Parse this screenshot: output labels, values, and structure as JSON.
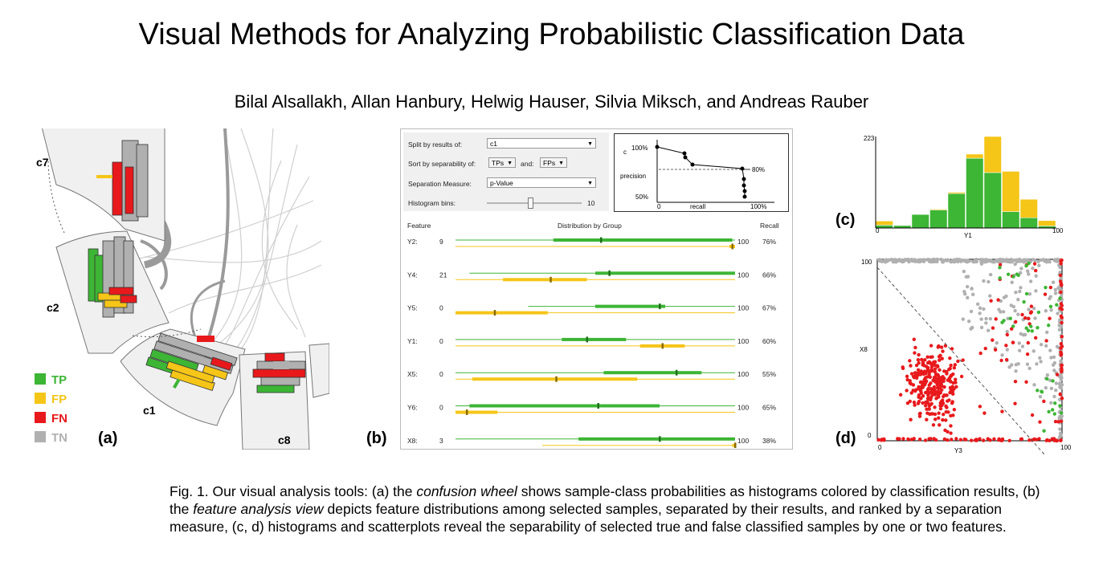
{
  "title": "Visual Methods for Analyzing Probabilistic Classification Data",
  "authors": "Bilal Alsallakh, Allan Hanbury, Helwig Hauser, Silvia Miksch, and Andreas Rauber",
  "colors": {
    "tp": "#3db535",
    "fp": "#f5c518",
    "fn": "#e8191c",
    "tn": "#b0b0b0"
  },
  "panel_a": {
    "letter": "(a)",
    "class_labels": [
      "c7",
      "c2",
      "c1",
      "c8"
    ],
    "legend": [
      {
        "label": "TP",
        "color": "#3db535"
      },
      {
        "label": "FP",
        "color": "#f5c518"
      },
      {
        "label": "FN",
        "color": "#e8191c"
      },
      {
        "label": "TN",
        "color": "#b0b0b0"
      }
    ]
  },
  "panel_b": {
    "letter": "(b)",
    "controls": {
      "split_label": "Split by results of:",
      "split_value": "c1",
      "sort_label": "Sort by separability of:",
      "sort_value1": "TPs",
      "and_label": "and:",
      "sort_value2": "FPs",
      "measure_label": "Separation Measure:",
      "measure_value": "p-Value",
      "bins_label": "Histogram bins:",
      "bins_value": "10"
    },
    "pr_chart": {
      "y_axis_label": "precision",
      "c_label": "c",
      "x_axis_label": "recall",
      "y_top": "100%",
      "y_bottom": "50%",
      "x_left": "0",
      "x_right": "100%",
      "threshold": "80%"
    },
    "table": {
      "headers": {
        "feature": "Feature",
        "distribution": "Distribution by Group",
        "recall": "Recall"
      },
      "rows": [
        {
          "feature": "Y2:",
          "count": "9",
          "max": "100",
          "recall": "76%",
          "tp": [
            0.0,
            0.35,
            0.52,
            0.99
          ],
          "fp": [
            0.0,
            0.98,
            0.99,
            1.0
          ]
        },
        {
          "feature": "Y4:",
          "count": "21",
          "max": "100",
          "recall": "66%",
          "tp": [
            0.05,
            0.5,
            0.55,
            1.0
          ],
          "fp": [
            0.0,
            0.17,
            0.34,
            0.47
          ]
        },
        {
          "feature": "Y5:",
          "count": "0",
          "max": "100",
          "recall": "67%",
          "tp": [
            0.26,
            0.5,
            0.73,
            0.75
          ],
          "fp": [
            0.0,
            0.0,
            0.14,
            0.33
          ]
        },
        {
          "feature": "Y1:",
          "count": "0",
          "max": "100",
          "recall": "60%",
          "tp": [
            0.0,
            0.38,
            0.47,
            0.61
          ],
          "fp": [
            0.0,
            0.66,
            0.74,
            0.82
          ]
        },
        {
          "feature": "X5:",
          "count": "0",
          "max": "100",
          "recall": "55%",
          "tp": [
            0.0,
            0.53,
            0.79,
            0.88
          ],
          "fp": [
            0.0,
            0.06,
            0.36,
            0.65
          ]
        },
        {
          "feature": "Y6:",
          "count": "0",
          "max": "100",
          "recall": "65%",
          "tp": [
            0.0,
            0.05,
            0.51,
            0.73
          ],
          "fp": [
            0.0,
            0.0,
            0.04,
            0.15
          ]
        },
        {
          "feature": "X8:",
          "count": "3",
          "max": "100",
          "recall": "38%",
          "tp": [
            0.0,
            0.44,
            0.73,
            1.0
          ],
          "fp": [
            0.31,
            0.99,
            1.0,
            1.0
          ]
        }
      ]
    }
  },
  "panel_c": {
    "letter": "(c)",
    "y_max_label": "223",
    "x_min": "0",
    "x_max": "100",
    "x_label": "Y1"
  },
  "panel_d": {
    "letter": "(d)",
    "y_max": "100",
    "y_min": "0",
    "x_min": "0",
    "x_max": "100",
    "x_label": "Y3",
    "y_label": "X8"
  },
  "chart_data": [
    {
      "type": "bar",
      "title": "",
      "xlabel": "Y1",
      "ylabel": "",
      "ylim": [
        0,
        223
      ],
      "xlim": [
        0,
        100
      ],
      "categories": [
        "0-10",
        "10-20",
        "20-30",
        "30-40",
        "40-50",
        "50-60",
        "60-70",
        "70-80",
        "80-90",
        "90-100"
      ],
      "series": [
        {
          "name": "TP",
          "values": [
            7,
            6,
            33,
            44,
            84,
            170,
            135,
            40,
            25,
            5
          ]
        },
        {
          "name": "FP",
          "values": [
            10,
            0,
            0,
            2,
            3,
            10,
            88,
            98,
            45,
            13
          ]
        }
      ]
    },
    {
      "type": "scatter",
      "xlabel": "Y3",
      "ylabel": "X8",
      "xlim": [
        0,
        100
      ],
      "ylim": [
        0,
        100
      ],
      "series": [
        {
          "name": "FN",
          "color": "#e8191c"
        },
        {
          "name": "TN",
          "color": "#b0b0b0"
        },
        {
          "name": "TP",
          "color": "#3db535"
        }
      ]
    }
  ],
  "caption": {
    "prefix": "Fig. 1.   Our visual analysis tools: (a) the ",
    "em1": "confusion wheel",
    "mid1": " shows sample-class probabilities as histograms colored by classification results, (b) the ",
    "em2": "feature analysis view",
    "mid2": " depicts feature distributions among selected samples, separated by their results, and ranked by a separation measure, (c, d) histograms and scatterplots reveal the separability of selected true and false classified samples by one or two features."
  }
}
